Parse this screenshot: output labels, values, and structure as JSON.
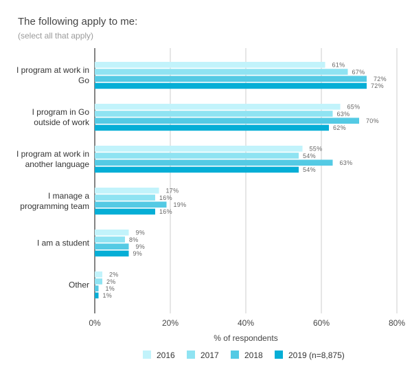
{
  "chart_data": {
    "type": "bar",
    "orientation": "horizontal",
    "title": "The following apply to me:",
    "subtitle": "(select all that apply)",
    "xlabel": "% of respondents",
    "ylabel": "",
    "xlim": [
      0,
      80
    ],
    "xticks": [
      "0%",
      "20%",
      "40%",
      "60%",
      "80%"
    ],
    "grid": true,
    "legend_position": "bottom",
    "categories": [
      [
        "I program at work in",
        "Go"
      ],
      [
        "I program in Go",
        "outside of work"
      ],
      [
        "I program at work in",
        "another language"
      ],
      [
        "I manage a",
        "programming team"
      ],
      [
        "I am a student"
      ],
      [
        "Other"
      ]
    ],
    "series": [
      {
        "name": "2016",
        "color": "#c2f3fb",
        "values": [
          61,
          65,
          55,
          17,
          9,
          2
        ]
      },
      {
        "name": "2017",
        "color": "#8fe3f2",
        "values": [
          67,
          63,
          54,
          16,
          8,
          2
        ]
      },
      {
        "name": "2018",
        "color": "#54cae4",
        "values": [
          72,
          70,
          63,
          19,
          9,
          1
        ]
      },
      {
        "name": "2019 (n=8,875)",
        "color": "#05aed6",
        "values": [
          72,
          62,
          54,
          16,
          9,
          1
        ]
      }
    ],
    "value_suffix": "%"
  }
}
